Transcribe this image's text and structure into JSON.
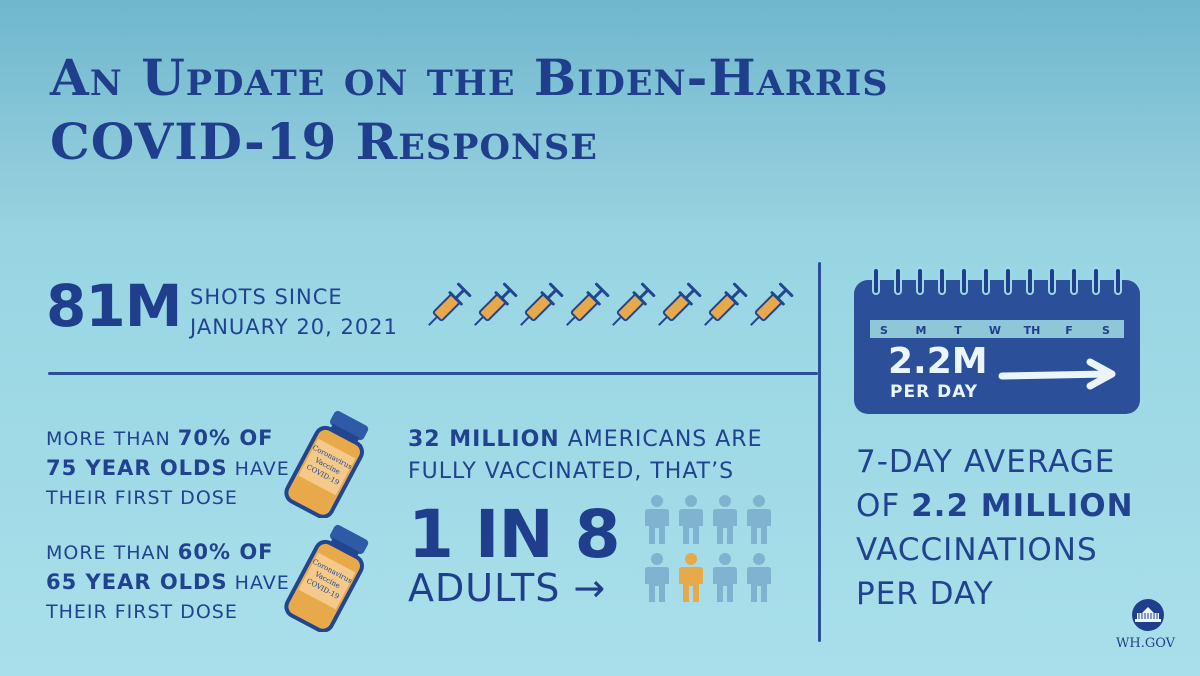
{
  "title": {
    "line1": "An Update on the Biden-Harris",
    "line2": "COVID-19 Response"
  },
  "shots": {
    "big": "81M",
    "line1": "SHOTS SINCE",
    "line2": "JANUARY 20, 2021",
    "icon": "syringe-icon",
    "icon_count": 8
  },
  "dose_70": {
    "prefix": "MORE THAN ",
    "pct": "70%",
    "of": " OF",
    "age": "75 YEAR OLDS",
    "have": " HAVE",
    "line3": "THEIR FIRST DOSE"
  },
  "dose_60": {
    "prefix": "MORE THAN ",
    "pct": "60%",
    "of": " OF",
    "age": "65 YEAR OLDS",
    "have": " HAVE",
    "line3": "THEIR FIRST DOSE"
  },
  "vial_label": "Coronavirus Vaccine COVID-19",
  "fully": {
    "bold": "32 MILLION",
    "rest": " AMERICANS ARE",
    "line2": "FULLY VACCINATED, THAT’S",
    "big": "1 IN 8",
    "adults": "ADULTS →",
    "people_total": 8,
    "people_highlighted": 1
  },
  "calendar": {
    "days": [
      "S",
      "M",
      "T",
      "W",
      "TH",
      "F",
      "S"
    ],
    "big": "2.2M",
    "small": "PER DAY"
  },
  "average": {
    "line1": "7-DAY AVERAGE",
    "of": "OF ",
    "bold": "2.2 MILLION",
    "line3": "VACCINATIONS",
    "line4": "PER DAY"
  },
  "footer": {
    "logo_icon": "white-house-icon",
    "label": "WH.GOV"
  },
  "colors": {
    "navy": "#1f3f8c",
    "sky": "#7fb3cf",
    "orange": "#e8a94a",
    "bg": "#9dd8e5"
  }
}
